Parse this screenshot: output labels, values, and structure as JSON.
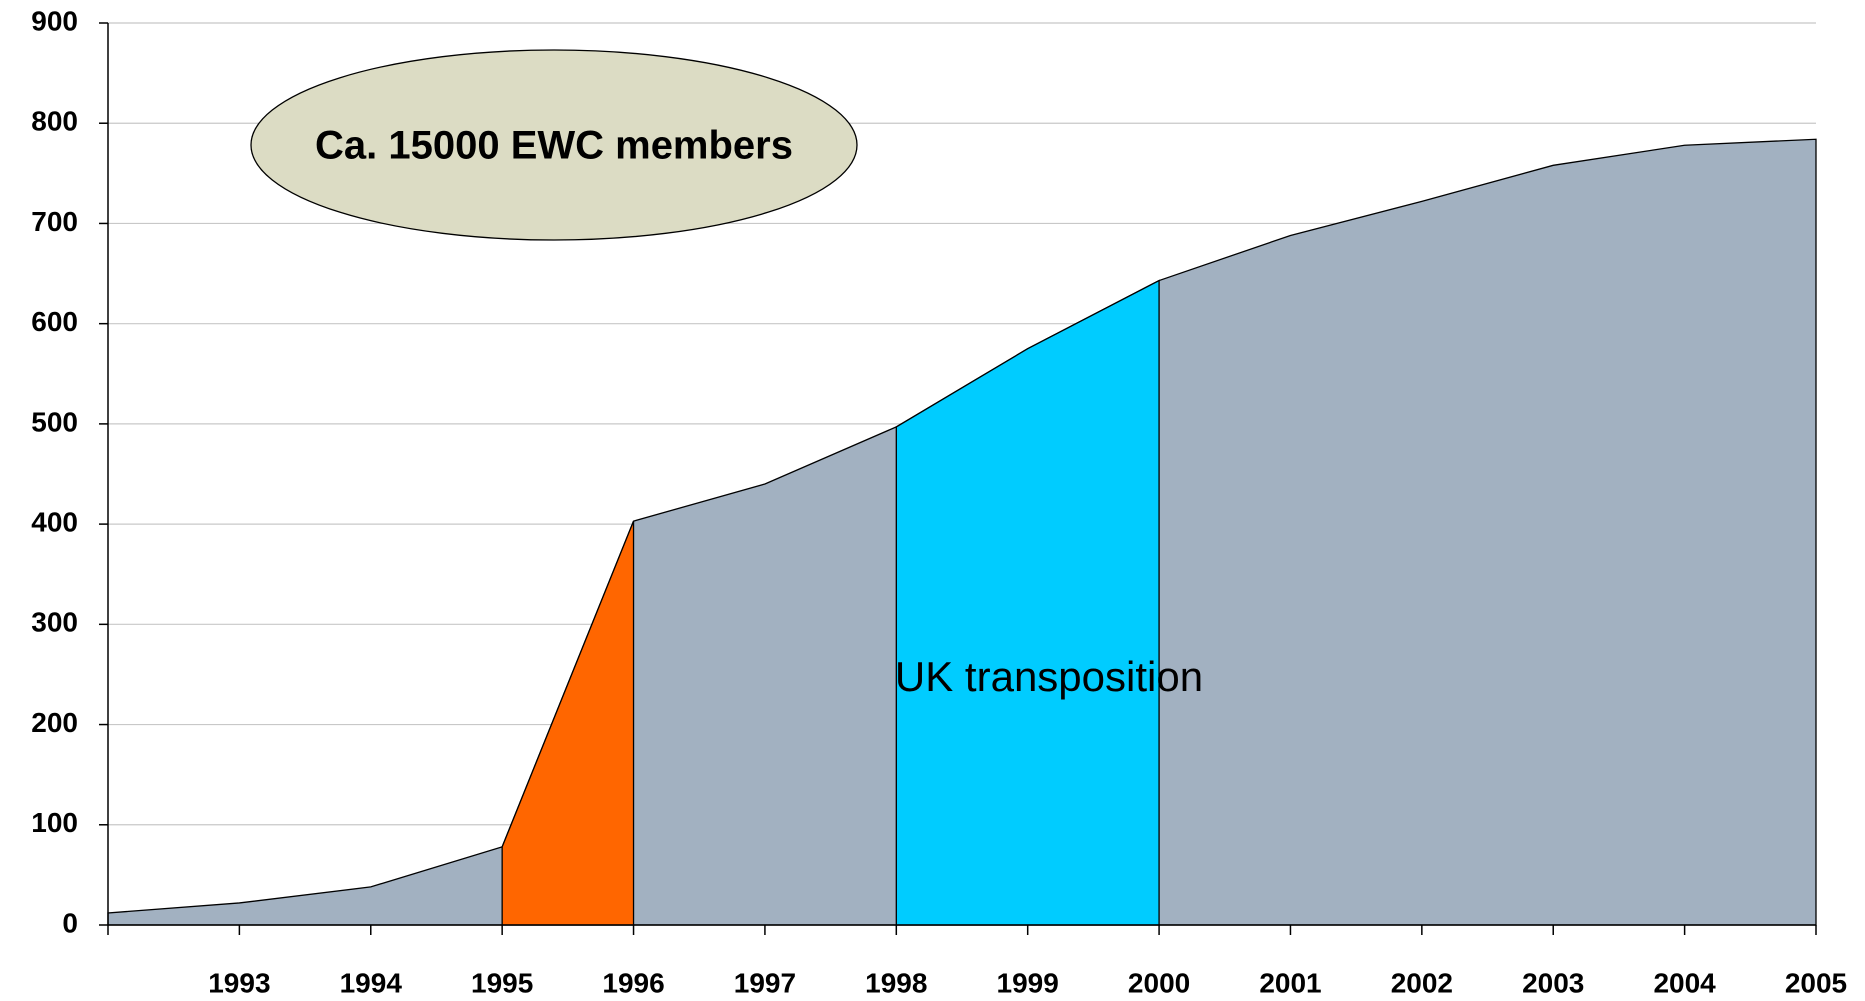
{
  "chart_data": {
    "type": "area",
    "categories": [
      null,
      "1993",
      "1994",
      "1995",
      "1996",
      "1997",
      "1998",
      "1999",
      "2000",
      "2001",
      "2002",
      "2003",
      "2004",
      "2005"
    ],
    "values": [
      12,
      22,
      38,
      78,
      403,
      440,
      497,
      575,
      643,
      688,
      722,
      758,
      778,
      784
    ],
    "color": "#a2b1c1",
    "ylim": [
      0,
      900
    ],
    "yticks": [
      0,
      100,
      200,
      300,
      400,
      500,
      600,
      700,
      800,
      900
    ],
    "grid": true,
    "highlights": [
      {
        "start": "1995",
        "end": "1996",
        "color": "#ff6600"
      },
      {
        "start": "1998",
        "end": "2000",
        "color": "#00ccff"
      }
    ],
    "annotations": [
      {
        "text": "Ca. 15000 EWC members",
        "color": "#ff0000",
        "background": "#dcdcc4"
      },
      {
        "text": "UK transposition",
        "color": "#000000"
      }
    ]
  }
}
